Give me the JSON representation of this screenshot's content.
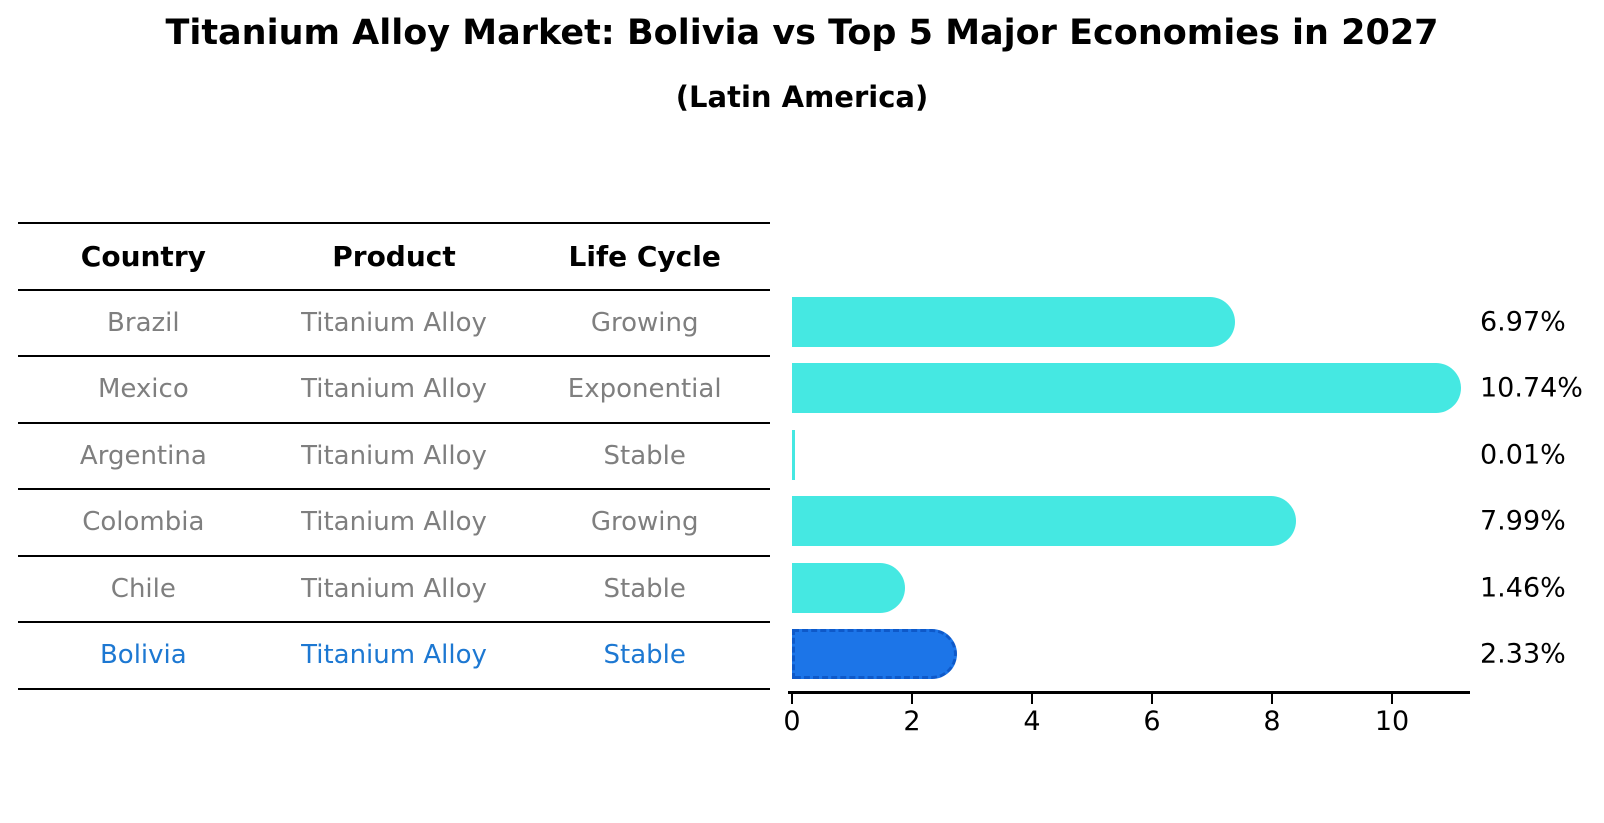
{
  "title": "Titanium Alloy Market: Bolivia vs Top 5 Major Economies in 2027",
  "subtitle": "(Latin America)",
  "table": {
    "headers": [
      "Country",
      "Product",
      "Life Cycle"
    ],
    "rows": [
      {
        "country": "Brazil",
        "product": "Titanium Alloy",
        "life_cycle": "Growing",
        "highlighted": false
      },
      {
        "country": "Mexico",
        "product": "Titanium Alloy",
        "life_cycle": "Exponential",
        "highlighted": false
      },
      {
        "country": "Argentina",
        "product": "Titanium Alloy",
        "life_cycle": "Stable",
        "highlighted": false
      },
      {
        "country": "Colombia",
        "product": "Titanium Alloy",
        "life_cycle": "Growing",
        "highlighted": false
      },
      {
        "country": "Chile",
        "product": "Titanium Alloy",
        "life_cycle": "Stable",
        "highlighted": false
      },
      {
        "country": "Bolivia",
        "product": "Titanium Alloy",
        "life_cycle": "Stable",
        "highlighted": true
      }
    ]
  },
  "chart_data": {
    "type": "bar",
    "orientation": "horizontal",
    "title": "Titanium Alloy Market: Bolivia vs Top 5 Major Economies in 2027",
    "subtitle": "(Latin America)",
    "categories": [
      "Brazil",
      "Mexico",
      "Argentina",
      "Colombia",
      "Chile",
      "Bolivia"
    ],
    "values": [
      6.97,
      10.74,
      0.01,
      7.99,
      1.46,
      2.33
    ],
    "value_labels": [
      "6.97%",
      "10.74%",
      "0.01%",
      "7.99%",
      "1.46%",
      "2.33%"
    ],
    "x_ticks": [
      0,
      2,
      4,
      6,
      8,
      10
    ],
    "xlim": [
      0,
      11.28
    ],
    "grid": false,
    "legend": "none",
    "highlight_index": 5,
    "colors": {
      "bar": "#45e8e2",
      "highlight_bar": "#1c75e8",
      "highlight_border": "#0e59c9",
      "highlight_text": "#1d78d2",
      "row_text": "#7f7f7f",
      "header_text": "#000000",
      "axis": "#000000"
    }
  }
}
